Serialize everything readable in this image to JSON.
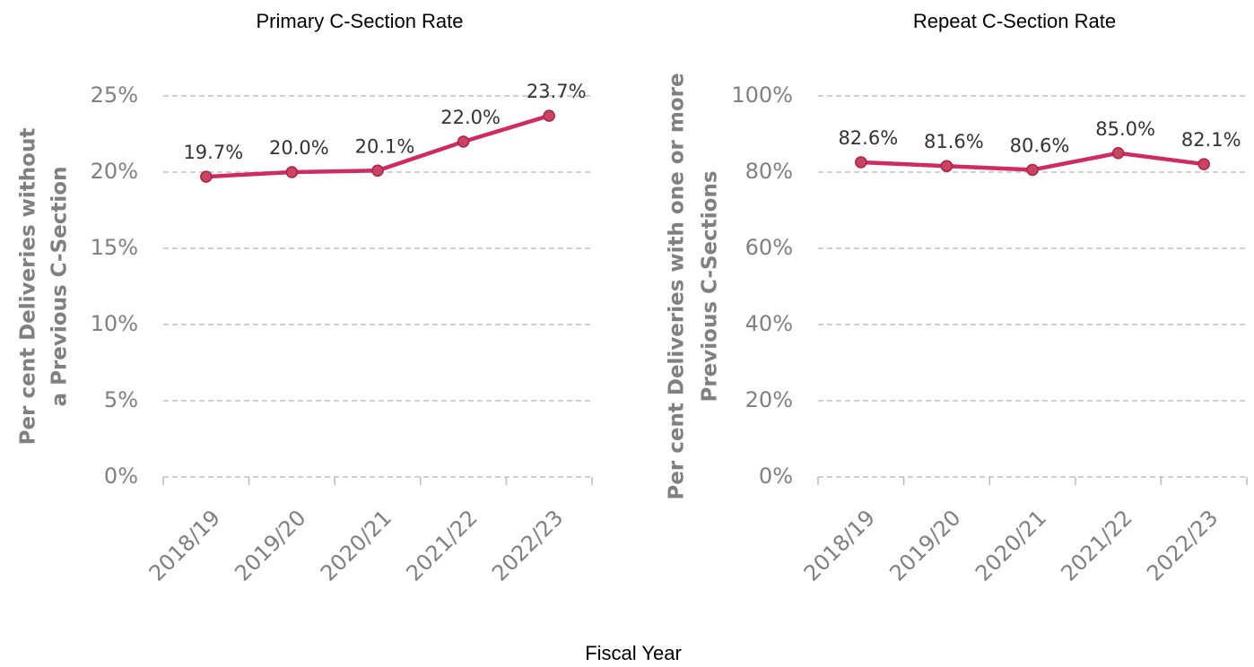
{
  "chart_data": [
    {
      "type": "line",
      "title": "Primary C-Section Rate",
      "ylabel": [
        "Per cent Deliveries without",
        "a Previous C-Section"
      ],
      "categories": [
        "2018/19",
        "2019/20",
        "2020/21",
        "2021/22",
        "2022/23"
      ],
      "series": [
        {
          "name": "Primary C-Section Rate",
          "color": "#d02a62",
          "values": [
            19.7,
            20.0,
            20.1,
            22.0,
            23.7
          ],
          "value_labels": [
            "19.7%",
            "20.0%",
            "20.1%",
            "22.0%",
            "23.7%"
          ]
        }
      ],
      "ylim": [
        0,
        25
      ],
      "yticks": [
        {
          "value": 0,
          "label": "0%"
        },
        {
          "value": 5,
          "label": "5%"
        },
        {
          "value": 10,
          "label": "10%"
        },
        {
          "value": 15,
          "label": "15%"
        },
        {
          "value": 20,
          "label": "20%"
        },
        {
          "value": 25,
          "label": "25%"
        }
      ],
      "grid": true
    },
    {
      "type": "line",
      "title": "Repeat C-Section Rate",
      "ylabel": [
        "Per cent Deliveries with one or more",
        "Previous C-Sections"
      ],
      "categories": [
        "2018/19",
        "2019/20",
        "2020/21",
        "2021/22",
        "2022/23"
      ],
      "series": [
        {
          "name": "Repeat C-Section Rate",
          "color": "#d02a62",
          "values": [
            82.6,
            81.6,
            80.6,
            85.0,
            82.1
          ],
          "value_labels": [
            "82.6%",
            "81.6%",
            "80.6%",
            "85.0%",
            "82.1%"
          ]
        }
      ],
      "ylim": [
        0,
        100
      ],
      "yticks": [
        {
          "value": 0,
          "label": "0%"
        },
        {
          "value": 20,
          "label": "20%"
        },
        {
          "value": 40,
          "label": "40%"
        },
        {
          "value": 60,
          "label": "60%"
        },
        {
          "value": 80,
          "label": "80%"
        },
        {
          "value": 100,
          "label": "100%"
        }
      ],
      "grid": true
    }
  ],
  "xlabel": "Fiscal Year"
}
